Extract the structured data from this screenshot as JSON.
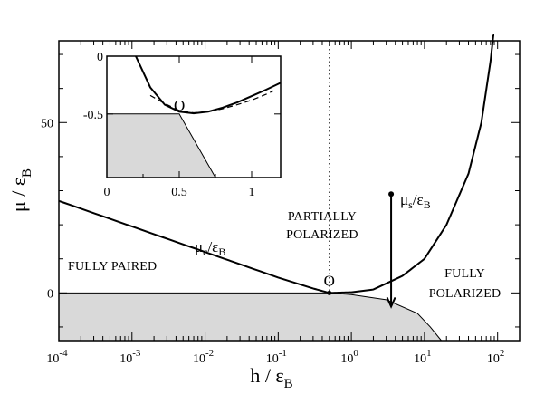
{
  "chart_data": [
    {
      "type": "line",
      "role": "main",
      "x_scale": "log",
      "xlim": [
        0.0001,
        200
      ],
      "ylim": [
        -14,
        74
      ],
      "xlabel": "h / ε",
      "xlabel_sub": "B",
      "ylabel": "μ / ε",
      "ylabel_sub": "B",
      "x_ticks": [
        {
          "value": 0.0001,
          "base": "10",
          "exp": "-4"
        },
        {
          "value": 0.001,
          "base": "10",
          "exp": "-3"
        },
        {
          "value": 0.01,
          "base": "10",
          "exp": "-2"
        },
        {
          "value": 0.1,
          "base": "10",
          "exp": "-1"
        },
        {
          "value": 1,
          "base": "10",
          "exp": "0"
        },
        {
          "value": 10,
          "base": "10",
          "exp": "1"
        },
        {
          "value": 100,
          "base": "10",
          "exp": "2"
        }
      ],
      "y_ticks": [
        {
          "value": 0,
          "label": "0"
        },
        {
          "value": 50,
          "label": "50"
        }
      ],
      "series": [
        {
          "label_main": "μ",
          "label_sub": "c",
          "label_tail": "/ε",
          "label_tail_sub": "B",
          "points": [
            [
              0.0001,
              27
            ],
            [
              0.001,
              19.5
            ],
            [
              0.01,
              12
            ],
            [
              0.1,
              4.5
            ],
            [
              0.3,
              1.3
            ],
            [
              0.5,
              0
            ]
          ]
        },
        {
          "label_main": "μ",
          "label_sub": "s",
          "label_tail": "/ε",
          "label_tail_sub": "B",
          "points": [
            [
              0.5,
              0
            ],
            [
              1,
              0.2
            ],
            [
              2,
              1
            ],
            [
              5,
              5
            ],
            [
              10,
              10
            ],
            [
              20,
              20
            ],
            [
              40,
              35
            ],
            [
              60,
              50
            ],
            [
              80,
              68
            ],
            [
              90,
              78
            ]
          ]
        },
        {
          "role": "shaded-region-boundary",
          "fill": "#d9d9d9",
          "points": [
            [
              0.0001,
              0
            ],
            [
              0.5,
              0
            ],
            [
              1,
              -0.5
            ],
            [
              3,
              -2
            ],
            [
              8,
              -6
            ],
            [
              12,
              -10
            ],
            [
              17,
              -14
            ]
          ]
        }
      ],
      "vertical_dotted_line_x": 0.5,
      "arrow": {
        "x": 3.5,
        "y_start": 29,
        "y_end": -4
      },
      "point_O": {
        "x": 0.5,
        "y": 0,
        "label": "O"
      },
      "annotations": [
        {
          "text": "FULLY PAIRED",
          "x": 0.0001,
          "y": 7
        },
        {
          "text": "PARTIALLY",
          "x": 0.3,
          "y": 21
        },
        {
          "text": "POLARIZED",
          "x": 0.3,
          "y": 15
        },
        {
          "text": "FULLY",
          "x": 40,
          "y": 4
        },
        {
          "text": "POLARIZED",
          "x": 40,
          "y": -2
        }
      ]
    },
    {
      "type": "line",
      "role": "inset",
      "xlim": [
        0,
        1.2
      ],
      "ylim": [
        -1.05,
        0
      ],
      "x_ticks": [
        {
          "value": 0,
          "label": "0"
        },
        {
          "value": 0.5,
          "label": "0.5"
        },
        {
          "value": 1,
          "label": "1"
        }
      ],
      "y_ticks": [
        {
          "value": 0,
          "label": "0"
        },
        {
          "value": -0.5,
          "label": "-0.5"
        }
      ],
      "series": [
        {
          "role": "solid-curve",
          "points": [
            [
              0.2,
              0
            ],
            [
              0.3,
              -0.27
            ],
            [
              0.4,
              -0.42
            ],
            [
              0.5,
              -0.48
            ],
            [
              0.6,
              -0.495
            ],
            [
              0.7,
              -0.48
            ],
            [
              0.8,
              -0.445
            ],
            [
              0.9,
              -0.4
            ],
            [
              1.0,
              -0.345
            ],
            [
              1.1,
              -0.29
            ],
            [
              1.2,
              -0.23
            ]
          ]
        },
        {
          "role": "dashed-curve",
          "points": [
            [
              0.3,
              -0.34
            ],
            [
              0.4,
              -0.41
            ],
            [
              0.5,
              -0.47
            ],
            [
              0.6,
              -0.49
            ],
            [
              0.7,
              -0.48
            ],
            [
              0.8,
              -0.455
            ],
            [
              0.9,
              -0.42
            ],
            [
              1.0,
              -0.38
            ],
            [
              1.1,
              -0.33
            ],
            [
              1.15,
              -0.3
            ]
          ]
        },
        {
          "role": "shaded-region",
          "fill": "#d9d9d9",
          "points": [
            [
              0,
              -0.5
            ],
            [
              0.5,
              -0.5
            ],
            [
              0.75,
              -1.05
            ],
            [
              0,
              -1.05
            ]
          ]
        }
      ],
      "point_O": {
        "x": 0.5,
        "y": -0.5,
        "label": "O"
      }
    }
  ]
}
